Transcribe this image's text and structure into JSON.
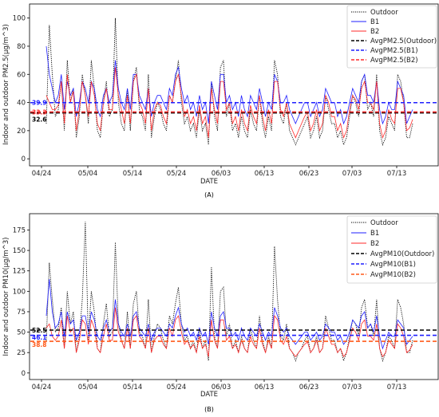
{
  "chart_data": [
    {
      "type": "line",
      "panel_label": "(A)",
      "xlabel": "DATE",
      "ylabel": "Indoor and outdoor PM2.5(μg/m^3)",
      "x_tick_labels": [
        "04/24",
        "05/04",
        "05/14",
        "05/24",
        "06/03",
        "06/13",
        "06/23",
        "07/03",
        "07/13"
      ],
      "ylim": [
        -5,
        110
      ],
      "y_ticks": [
        0,
        20,
        40,
        60,
        80,
        100
      ],
      "legend": {
        "position": "top-right",
        "entries": [
          "Outdoor",
          "B1",
          "B2",
          "AvgPM2.5(Outdoor)",
          "AvgPM2.5(B1)",
          "AvgPM2.5(B2)"
        ]
      },
      "series": [
        {
          "name": "Outdoor",
          "color": "#000000",
          "style": "dotted",
          "values": [
            25,
            95,
            60,
            30,
            35,
            55,
            20,
            70,
            40,
            50,
            15,
            30,
            60,
            45,
            25,
            70,
            50,
            20,
            15,
            40,
            55,
            30,
            35,
            100,
            40,
            25,
            20,
            50,
            20,
            55,
            65,
            35,
            30,
            20,
            60,
            15,
            30,
            40,
            35,
            25,
            20,
            45,
            40,
            55,
            70,
            40,
            25,
            30,
            20,
            25,
            15,
            35,
            20,
            25,
            10,
            55,
            30,
            20,
            65,
            70,
            30,
            40,
            20,
            25,
            15,
            30,
            20,
            15,
            35,
            25,
            20,
            45,
            25,
            15,
            30,
            20,
            70,
            60,
            30,
            25,
            40,
            20,
            15,
            10,
            15,
            20,
            25,
            30,
            15,
            20,
            30,
            15,
            20,
            45,
            35,
            25,
            25,
            15,
            20,
            10,
            15,
            30,
            45,
            40,
            30,
            55,
            60,
            35,
            40,
            30,
            60,
            20,
            10,
            15,
            30,
            25,
            20,
            60,
            55,
            40,
            15,
            15,
            25
          ]
        },
        {
          "name": "B1",
          "color": "#1f1fff",
          "style": "solid",
          "values": [
            80,
            60,
            50,
            40,
            45,
            60,
            35,
            55,
            45,
            50,
            30,
            40,
            55,
            50,
            40,
            55,
            50,
            35,
            30,
            45,
            50,
            40,
            45,
            70,
            50,
            40,
            35,
            50,
            35,
            60,
            60,
            45,
            40,
            35,
            50,
            30,
            40,
            45,
            45,
            40,
            35,
            50,
            45,
            60,
            65,
            50,
            40,
            45,
            35,
            40,
            30,
            45,
            35,
            40,
            25,
            55,
            45,
            35,
            60,
            60,
            40,
            45,
            35,
            40,
            30,
            45,
            35,
            30,
            45,
            40,
            35,
            50,
            40,
            30,
            40,
            35,
            60,
            55,
            40,
            40,
            45,
            35,
            30,
            25,
            30,
            35,
            40,
            40,
            30,
            35,
            40,
            30,
            35,
            50,
            45,
            40,
            40,
            30,
            35,
            25,
            30,
            40,
            50,
            45,
            40,
            55,
            60,
            45,
            45,
            40,
            55,
            35,
            25,
            30,
            40,
            35,
            35,
            55,
            50,
            45,
            25,
            30,
            35
          ]
        },
        {
          "name": "B2",
          "color": "#ff2a2a",
          "style": "solid",
          "values": [
            45,
            40,
            35,
            35,
            38,
            55,
            25,
            60,
            40,
            48,
            20,
            35,
            55,
            45,
            30,
            55,
            45,
            25,
            20,
            40,
            50,
            35,
            35,
            65,
            45,
            35,
            25,
            45,
            25,
            55,
            60,
            40,
            35,
            25,
            50,
            20,
            35,
            40,
            38,
            30,
            25,
            45,
            40,
            55,
            60,
            45,
            30,
            35,
            25,
            30,
            20,
            38,
            25,
            30,
            15,
            50,
            35,
            25,
            55,
            55,
            35,
            40,
            25,
            30,
            20,
            35,
            25,
            20,
            38,
            30,
            25,
            45,
            30,
            20,
            35,
            25,
            55,
            55,
            35,
            30,
            40,
            25,
            20,
            15,
            20,
            25,
            30,
            33,
            20,
            25,
            35,
            20,
            25,
            45,
            40,
            30,
            30,
            20,
            25,
            15,
            20,
            35,
            45,
            42,
            35,
            50,
            55,
            40,
            40,
            35,
            55,
            25,
            15,
            20,
            35,
            28,
            25,
            50,
            50,
            40,
            20,
            22,
            28
          ]
        }
      ],
      "averages": [
        {
          "name": "AvgPM2.5(Outdoor)",
          "value": 32.6,
          "color": "#000000",
          "label": "32.6"
        },
        {
          "name": "AvgPM2.5(B1)",
          "value": 39.9,
          "color": "#1f1fff",
          "label": "39.9"
        },
        {
          "name": "AvgPM2.5(B2)",
          "value": 33.3,
          "color": "#ff2a2a",
          "label": "33.3"
        }
      ]
    },
    {
      "type": "line",
      "panel_label": "(B)",
      "xlabel": "DATE",
      "ylabel": "Indoor and outdoor PM10(μg/m^3)",
      "x_tick_labels": [
        "04/24",
        "05/04",
        "05/14",
        "05/24",
        "06/03",
        "06/13",
        "06/23",
        "07/03",
        "07/13"
      ],
      "ylim": [
        -8,
        195
      ],
      "y_ticks": [
        0,
        25,
        50,
        75,
        100,
        125,
        150,
        175
      ],
      "legend": {
        "position": "top-right",
        "entries": [
          "Outdoor",
          "B1",
          "B2",
          "AvgPM10(Outdoor)",
          "AvgPM10(B1)",
          "AvgPM10(B2)"
        ]
      },
      "series": [
        {
          "name": "Outdoor",
          "color": "#000000",
          "style": "dotted",
          "values": [
            40,
            135,
            90,
            50,
            55,
            80,
            30,
            100,
            60,
            75,
            25,
            45,
            90,
            185,
            40,
            100,
            75,
            30,
            25,
            60,
            85,
            45,
            50,
            160,
            60,
            40,
            30,
            75,
            30,
            85,
            100,
            50,
            45,
            30,
            90,
            25,
            45,
            60,
            55,
            40,
            30,
            70,
            60,
            85,
            105,
            60,
            40,
            45,
            30,
            40,
            25,
            55,
            30,
            40,
            15,
            130,
            45,
            30,
            100,
            105,
            45,
            60,
            30,
            40,
            25,
            45,
            30,
            25,
            55,
            40,
            30,
            70,
            40,
            25,
            45,
            30,
            155,
            90,
            45,
            40,
            60,
            30,
            25,
            15,
            25,
            30,
            40,
            45,
            25,
            30,
            45,
            25,
            30,
            70,
            55,
            40,
            40,
            25,
            30,
            15,
            25,
            45,
            65,
            60,
            45,
            80,
            90,
            55,
            60,
            45,
            90,
            30,
            15,
            25,
            45,
            40,
            30,
            90,
            80,
            60,
            25,
            25,
            40
          ]
        },
        {
          "name": "B1",
          "color": "#1f1fff",
          "style": "solid",
          "values": [
            70,
            115,
            75,
            55,
            60,
            75,
            45,
            75,
            60,
            65,
            40,
            50,
            70,
            70,
            50,
            75,
            65,
            45,
            40,
            55,
            65,
            50,
            55,
            90,
            60,
            50,
            45,
            60,
            45,
            70,
            75,
            55,
            50,
            45,
            60,
            40,
            50,
            55,
            55,
            50,
            45,
            60,
            55,
            70,
            80,
            60,
            50,
            55,
            45,
            50,
            40,
            55,
            45,
            50,
            35,
            75,
            55,
            45,
            70,
            75,
            55,
            55,
            45,
            50,
            40,
            55,
            45,
            40,
            55,
            50,
            45,
            60,
            50,
            40,
            50,
            45,
            80,
            70,
            55,
            50,
            55,
            45,
            40,
            35,
            40,
            45,
            50,
            50,
            40,
            45,
            50,
            40,
            45,
            60,
            55,
            50,
            50,
            40,
            45,
            35,
            40,
            50,
            65,
            60,
            55,
            70,
            75,
            55,
            60,
            50,
            70,
            45,
            30,
            40,
            50,
            45,
            45,
            65,
            60,
            55,
            35,
            40,
            45
          ]
        },
        {
          "name": "B2",
          "color": "#ff2a2a",
          "style": "solid",
          "values": [
            55,
            60,
            45,
            40,
            45,
            65,
            30,
            70,
            50,
            55,
            25,
            40,
            65,
            60,
            35,
            65,
            55,
            30,
            25,
            45,
            60,
            40,
            40,
            80,
            50,
            40,
            30,
            55,
            30,
            65,
            70,
            45,
            40,
            30,
            55,
            25,
            40,
            45,
            45,
            35,
            30,
            55,
            45,
            65,
            70,
            50,
            35,
            40,
            30,
            35,
            25,
            45,
            30,
            35,
            20,
            65,
            40,
            30,
            65,
            65,
            40,
            45,
            30,
            35,
            25,
            40,
            30,
            25,
            45,
            35,
            30,
            55,
            35,
            25,
            40,
            30,
            70,
            65,
            40,
            35,
            45,
            30,
            25,
            20,
            25,
            30,
            35,
            38,
            25,
            30,
            40,
            25,
            30,
            55,
            45,
            35,
            35,
            25,
            30,
            20,
            25,
            40,
            55,
            50,
            40,
            60,
            65,
            45,
            45,
            40,
            60,
            30,
            20,
            25,
            40,
            35,
            30,
            60,
            55,
            45,
            25,
            28,
            35
          ]
        }
      ],
      "averages": [
        {
          "name": "AvgPM10(Outdoor)",
          "value": 52.5,
          "color": "#000000",
          "label": "52.5"
        },
        {
          "name": "AvgPM10(B1)",
          "value": 46.1,
          "color": "#1f1fff",
          "label": "46.1"
        },
        {
          "name": "AvgPM10(B2)",
          "value": 38.8,
          "color": "#ff5a1a",
          "label": "38.8"
        }
      ]
    }
  ]
}
